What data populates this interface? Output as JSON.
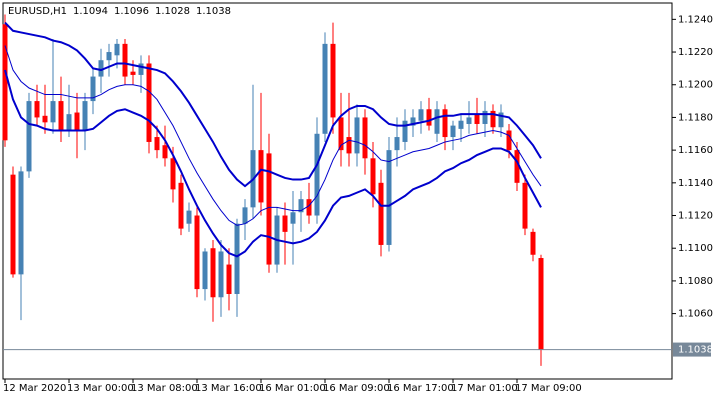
{
  "chart_data": {
    "type": "candlestick",
    "title": "EURUSD,H1",
    "categories": [
      "12 Mar 2020",
      null,
      null,
      null,
      null,
      null,
      null,
      null,
      "13 Mar 00:00",
      null,
      null,
      null,
      null,
      null,
      null,
      null,
      "13 Mar 08:00",
      null,
      null,
      null,
      null,
      null,
      null,
      null,
      "13 Mar 16:00",
      null,
      null,
      null,
      null,
      null,
      null,
      null,
      "16 Mar 01:00",
      null,
      null,
      null,
      null,
      null,
      null,
      null,
      "16 Mar 09:00",
      null,
      null,
      null,
      null,
      null,
      null,
      null,
      "16 Mar 17:00",
      null,
      null,
      null,
      null,
      null,
      null,
      null,
      "17 Mar 01:00",
      null,
      null,
      null,
      null,
      null,
      null,
      null,
      "17 Mar 09:00",
      null,
      null,
      null
    ],
    "candles": {
      "open": [
        1.1237,
        1.1145,
        1.1084,
        1.1147,
        1.119,
        1.1181,
        1.1177,
        1.119,
        1.1172,
        1.1183,
        1.1172,
        1.119,
        1.1205,
        1.1215,
        1.1218,
        1.1225,
        1.1208,
        1.1206,
        1.1213,
        1.1168,
        1.1163,
        1.1155,
        1.114,
        1.1115,
        1.112,
        1.1075,
        1.11,
        1.107,
        1.109,
        1.1072,
        1.1115,
        1.1125,
        1.116,
        1.1158,
        1.109,
        1.112,
        1.1115,
        1.1122,
        1.113,
        1.112,
        1.117,
        1.1225,
        1.118,
        1.1168,
        1.1158,
        1.118,
        1.1155,
        1.114,
        1.1102,
        1.116,
        1.1165,
        1.1175,
        1.1178,
        1.1185,
        1.117,
        1.1185,
        1.1168,
        1.1173,
        1.1176,
        1.1182,
        1.1176,
        1.1184,
        1.1174,
        1.1172,
        1.116,
        1.114,
        1.111,
        1.1094
      ],
      "high": [
        1.1243,
        1.115,
        1.115,
        1.1195,
        1.12,
        1.12,
        1.1228,
        1.1205,
        1.12,
        1.1195,
        1.1195,
        1.121,
        1.1222,
        1.1225,
        1.1228,
        1.1228,
        1.1215,
        1.1218,
        1.1218,
        1.1175,
        1.1175,
        1.1162,
        1.1145,
        1.1128,
        1.1125,
        1.11,
        1.1105,
        1.1105,
        1.11,
        1.1118,
        1.113,
        1.12,
        1.1195,
        1.117,
        1.1125,
        1.1128,
        1.1135,
        1.1135,
        1.114,
        1.118,
        1.1232,
        1.1238,
        1.1195,
        1.1195,
        1.1188,
        1.1185,
        1.1165,
        1.1148,
        1.1168,
        1.118,
        1.1185,
        1.1185,
        1.119,
        1.1192,
        1.119,
        1.1188,
        1.1178,
        1.1182,
        1.119,
        1.1192,
        1.119,
        1.1188,
        1.1188,
        1.1176,
        1.1165,
        1.1145,
        1.1112,
        1.1096
      ],
      "low": [
        1.1162,
        1.1082,
        1.1056,
        1.1143,
        1.1175,
        1.117,
        1.117,
        1.1165,
        1.1168,
        1.1155,
        1.116,
        1.1182,
        1.1195,
        1.1205,
        1.121,
        1.12,
        1.12,
        1.1195,
        1.1158,
        1.1155,
        1.115,
        1.1128,
        1.1108,
        1.111,
        1.107,
        1.1068,
        1.1055,
        1.1058,
        1.1062,
        1.1058,
        1.1105,
        1.1118,
        1.112,
        1.1085,
        1.1085,
        1.109,
        1.109,
        1.111,
        1.1115,
        1.1115,
        1.1165,
        1.117,
        1.115,
        1.115,
        1.115,
        1.1145,
        1.1125,
        1.1095,
        1.1098,
        1.115,
        1.116,
        1.1168,
        1.117,
        1.1172,
        1.1165,
        1.116,
        1.116,
        1.1165,
        1.117,
        1.117,
        1.1168,
        1.117,
        1.1168,
        1.1155,
        1.1135,
        1.1108,
        1.1092,
        1.1028
      ],
      "close": [
        1.1166,
        1.1084,
        1.1147,
        1.119,
        1.118,
        1.1177,
        1.119,
        1.1172,
        1.1182,
        1.1172,
        1.119,
        1.1205,
        1.1215,
        1.122,
        1.1225,
        1.1205,
        1.1206,
        1.1213,
        1.1165,
        1.116,
        1.1155,
        1.1136,
        1.1112,
        1.1123,
        1.1075,
        1.1098,
        1.107,
        1.1098,
        1.1072,
        1.1115,
        1.1125,
        1.116,
        1.1128,
        1.109,
        1.112,
        1.111,
        1.1122,
        1.113,
        1.112,
        1.117,
        1.1225,
        1.118,
        1.116,
        1.1158,
        1.118,
        1.1155,
        1.1133,
        1.1102,
        1.116,
        1.1168,
        1.1178,
        1.118,
        1.1185,
        1.1175,
        1.1185,
        1.1168,
        1.1175,
        1.1178,
        1.118,
        1.1176,
        1.1184,
        1.1174,
        1.1183,
        1.116,
        1.114,
        1.1112,
        1.1096,
        1.1038
      ]
    },
    "bands": {
      "upper": [
        1.1238,
        1.1233,
        1.1232,
        1.1231,
        1.123,
        1.1229,
        1.1227,
        1.1226,
        1.1224,
        1.1221,
        1.1216,
        1.121,
        1.1209,
        1.1211,
        1.1213,
        1.1213,
        1.1212,
        1.1211,
        1.121,
        1.1209,
        1.1207,
        1.1202,
        1.1196,
        1.1189,
        1.1181,
        1.1173,
        1.1165,
        1.1156,
        1.1148,
        1.1142,
        1.1138,
        1.1142,
        1.1148,
        1.1147,
        1.1145,
        1.1143,
        1.1142,
        1.1142,
        1.1143,
        1.1151,
        1.1163,
        1.1175,
        1.1181,
        1.1185,
        1.1187,
        1.1187,
        1.1185,
        1.118,
        1.1176,
        1.1175,
        1.1175,
        1.1176,
        1.1177,
        1.1178,
        1.118,
        1.1181,
        1.1181,
        1.1182,
        1.1182,
        1.1182,
        1.1182,
        1.1182,
        1.1181,
        1.118,
        1.1175,
        1.1169,
        1.1163,
        1.1155
      ],
      "middle": [
        1.1224,
        1.1209,
        1.1202,
        1.1198,
        1.1196,
        1.1194,
        1.1194,
        1.1194,
        1.1193,
        1.1192,
        1.1192,
        1.1192,
        1.1194,
        1.1197,
        1.1199,
        1.12,
        1.12,
        1.1199,
        1.1196,
        1.1191,
        1.1183,
        1.1175,
        1.1165,
        1.1155,
        1.1146,
        1.1138,
        1.113,
        1.1123,
        1.1117,
        1.1114,
        1.1115,
        1.1118,
        1.1123,
        1.1125,
        1.1125,
        1.1124,
        1.1123,
        1.1123,
        1.1126,
        1.1132,
        1.1142,
        1.1154,
        1.1163,
        1.1166,
        1.1165,
        1.1163,
        1.1159,
        1.1154,
        1.1153,
        1.1155,
        1.1157,
        1.1159,
        1.116,
        1.1161,
        1.1163,
        1.1165,
        1.1166,
        1.1167,
        1.1169,
        1.117,
        1.1171,
        1.1172,
        1.1171,
        1.1169,
        1.1161,
        1.1153,
        1.1145,
        1.1138
      ],
      "lower": [
        1.1209,
        1.1191,
        1.118,
        1.1176,
        1.1175,
        1.1173,
        1.1172,
        1.1172,
        1.1172,
        1.1172,
        1.1172,
        1.1173,
        1.1177,
        1.1181,
        1.1184,
        1.1185,
        1.1183,
        1.1181,
        1.1178,
        1.1173,
        1.1166,
        1.1157,
        1.1147,
        1.1136,
        1.1126,
        1.1117,
        1.1109,
        1.1102,
        1.1097,
        1.1095,
        1.1098,
        1.1104,
        1.1108,
        1.1107,
        1.1105,
        1.1104,
        1.1103,
        1.1104,
        1.1106,
        1.111,
        1.1117,
        1.1126,
        1.1131,
        1.1132,
        1.1134,
        1.1136,
        1.1132,
        1.1126,
        1.1126,
        1.1129,
        1.1132,
        1.1136,
        1.1138,
        1.114,
        1.1143,
        1.1147,
        1.1149,
        1.1152,
        1.1154,
        1.1157,
        1.1159,
        1.1161,
        1.1161,
        1.1159,
        1.1153,
        1.1143,
        1.1134,
        1.1125
      ]
    },
    "up_color": "#4682b4",
    "down_color": "#ff0000",
    "band_color": "#0000cd",
    "price_line_color": "#778899",
    "ylim": [
      1.102,
      1.125
    ],
    "yticks": [
      {
        "value": 1.124,
        "label": "1.1240"
      },
      {
        "value": 1.122,
        "label": "1.1220"
      },
      {
        "value": 1.12,
        "label": "1.1200"
      },
      {
        "value": 1.118,
        "label": "1.1180"
      },
      {
        "value": 1.116,
        "label": "1.1160"
      },
      {
        "value": 1.114,
        "label": "1.1140"
      },
      {
        "value": 1.112,
        "label": "1.1120"
      },
      {
        "value": 1.11,
        "label": "1.1100"
      },
      {
        "value": 1.108,
        "label": "1.1080"
      },
      {
        "value": 1.106,
        "label": "1.1060"
      }
    ]
  }
}
